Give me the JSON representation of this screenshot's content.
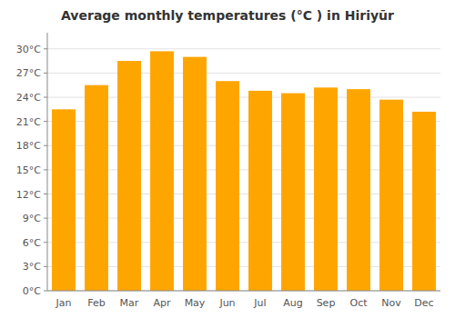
{
  "chart_data": {
    "type": "bar",
    "title": "Average monthly temperatures (°C ) in Hiriyūr",
    "categories": [
      "Jan",
      "Feb",
      "Mar",
      "Apr",
      "May",
      "Jun",
      "Jul",
      "Aug",
      "Sep",
      "Oct",
      "Nov",
      "Dec"
    ],
    "values": [
      22.5,
      25.5,
      28.5,
      29.7,
      29.0,
      26.0,
      24.8,
      24.5,
      25.2,
      25.0,
      23.7,
      22.2
    ],
    "color": "#FFA500",
    "ylim": [
      0,
      32
    ],
    "yticks": [
      {
        "value": 0,
        "label": "0°C"
      },
      {
        "value": 3,
        "label": "3°C"
      },
      {
        "value": 6,
        "label": "6°C"
      },
      {
        "value": 9,
        "label": "9°C"
      },
      {
        "value": 12,
        "label": "12°C"
      },
      {
        "value": 15,
        "label": "15°C"
      },
      {
        "value": 18,
        "label": "18°C"
      },
      {
        "value": 21,
        "label": "21°C"
      },
      {
        "value": 24,
        "label": "24°C"
      },
      {
        "value": 27,
        "label": "27°C"
      },
      {
        "value": 30,
        "label": "30°C"
      }
    ],
    "grid": true
  }
}
